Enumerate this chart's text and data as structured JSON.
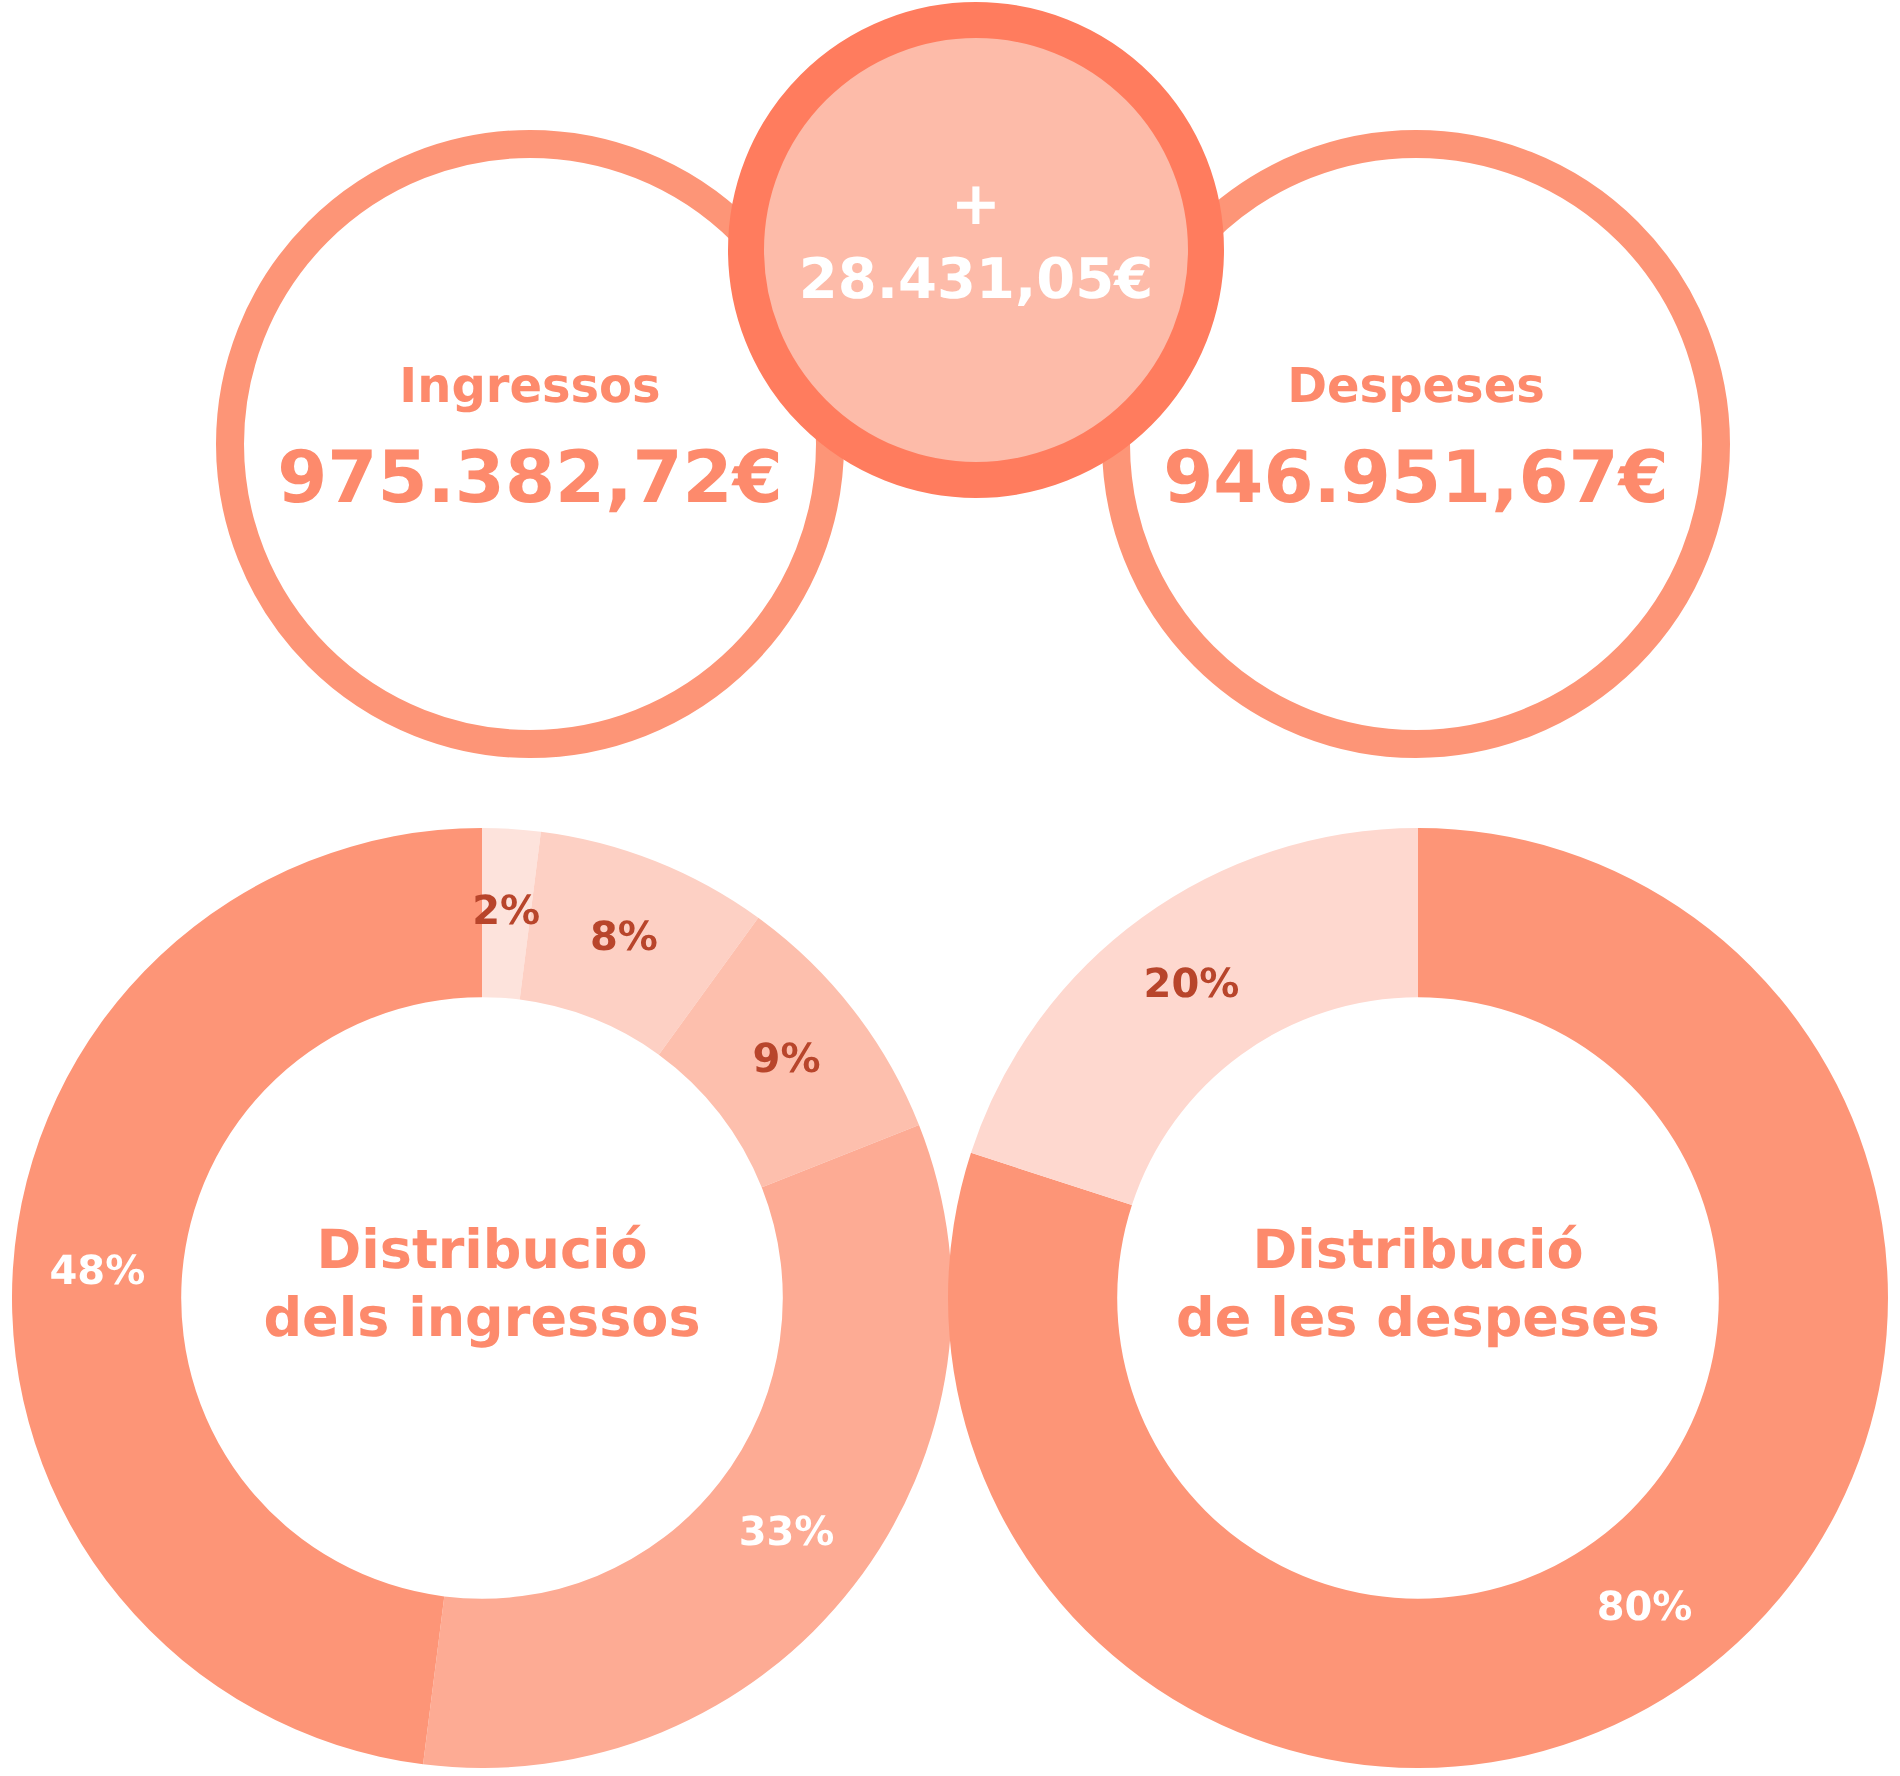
{
  "chart_data": [
    {
      "type": "other",
      "annotations": [
        "+",
        "28.431,05€",
        "Ingressos",
        "975.382,72€",
        "Despeses",
        "946.951,67€"
      ]
    },
    {
      "type": "donut",
      "title": "Distribució\ndels ingressos",
      "categories": [
        null,
        null,
        null,
        null,
        null
      ],
      "values": [
        2,
        8,
        9,
        33,
        48
      ],
      "value_labels": [
        "2%",
        "8%",
        "9%",
        "33%",
        "48%"
      ],
      "colors": [
        "#fde3dc",
        "#fdd0c4",
        "#fdbfad",
        "#fdab94",
        "#fd9577"
      ]
    },
    {
      "type": "donut",
      "title": "Distribució\nde les despeses",
      "categories": [
        null,
        null
      ],
      "values": [
        80,
        20
      ],
      "value_labels": [
        "80%",
        "20%"
      ],
      "colors": [
        "#fd9577",
        "#fed8cf"
      ]
    }
  ]
}
